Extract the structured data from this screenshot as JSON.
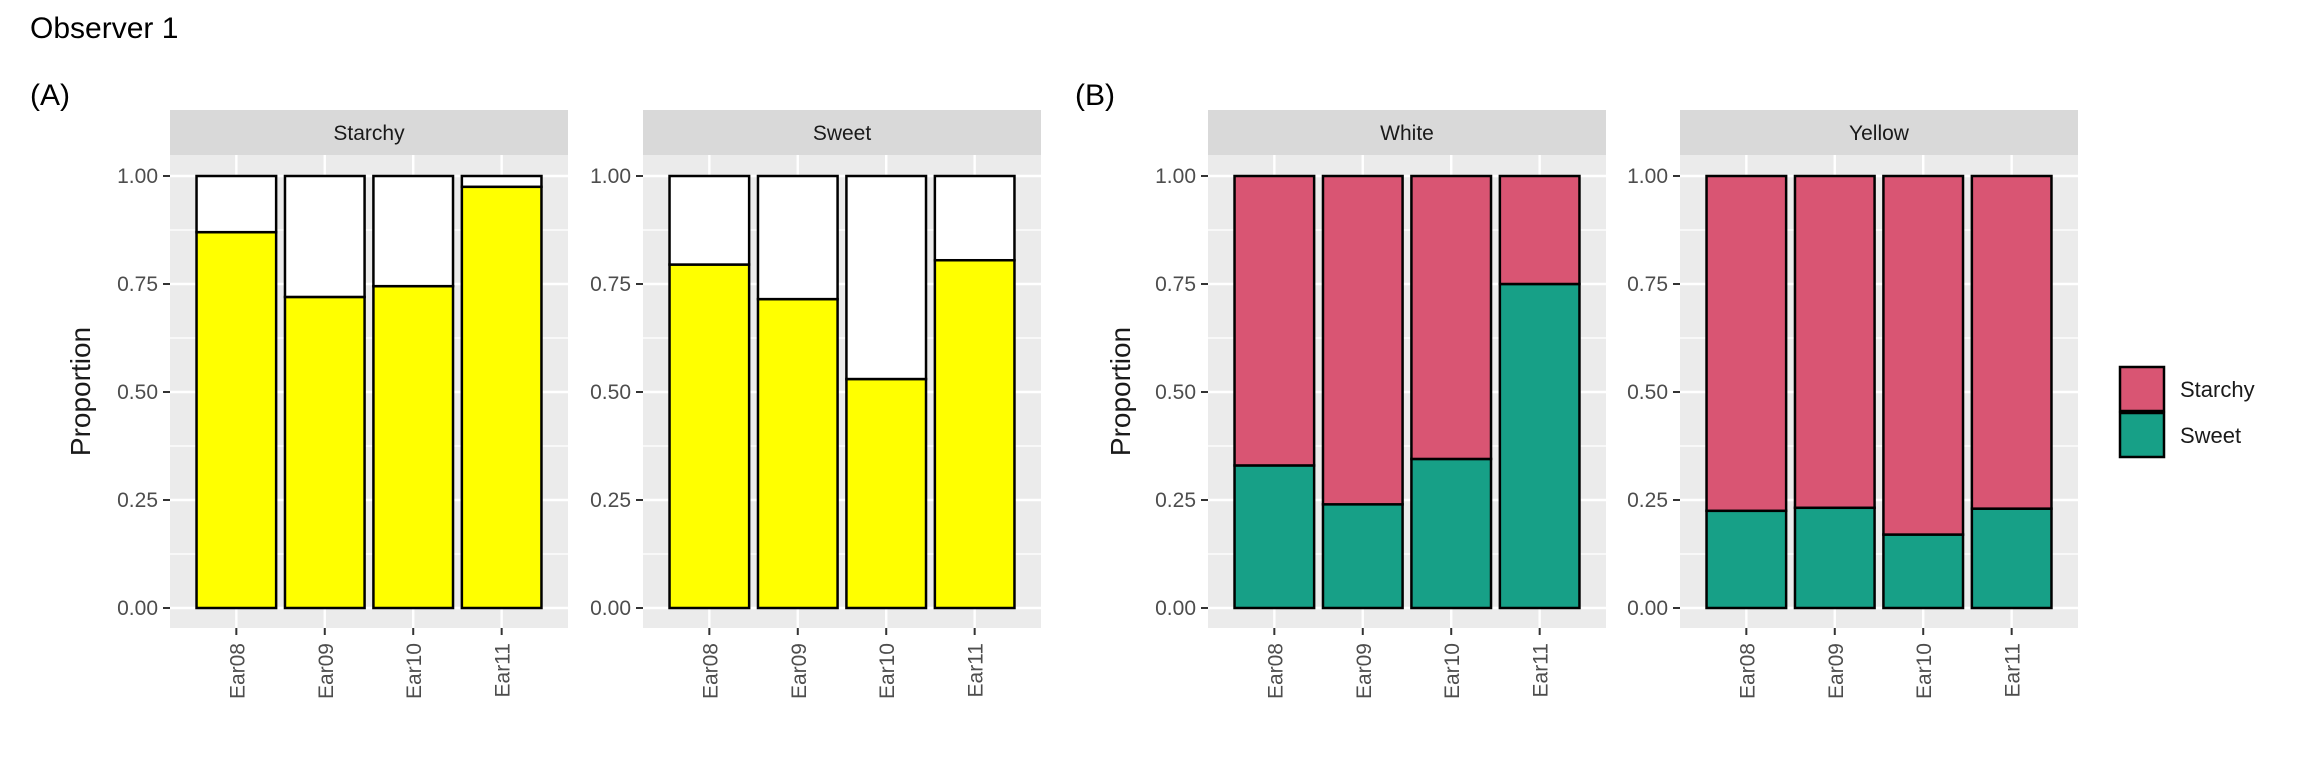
{
  "page": {
    "title": "Observer 1",
    "panel_a_label": "(A)",
    "panel_b_label": "(B)"
  },
  "colors": {
    "panel_bg": "#ebebeb",
    "strip_bg": "#d9d9d9",
    "grid": "#ffffff",
    "yellow_fill": "#ffff00",
    "empty_fill": "#ffffff",
    "starchy": "#d95573",
    "sweet": "#17a087",
    "bar_stroke": "#000000",
    "text": "#1a1a1a",
    "tick_text": "#4d4d4d"
  },
  "legend": {
    "items": [
      {
        "label": "Starchy",
        "color": "#d95573"
      },
      {
        "label": "Sweet",
        "color": "#17a087"
      }
    ]
  },
  "chart_data": [
    {
      "id": "A",
      "type": "bar",
      "stacked": true,
      "ylabel": "Proportion",
      "xlabel": "",
      "ylim": [
        0,
        1
      ],
      "yticks": [
        "0.00",
        "0.25",
        "0.50",
        "0.75",
        "1.00"
      ],
      "grid": true,
      "facets": [
        {
          "strip": "Starchy",
          "categories": [
            "Ear08",
            "Ear09",
            "Ear10",
            "Ear11"
          ],
          "series": [
            {
              "fill": "#ffff00",
              "values": [
                0.87,
                0.72,
                0.745,
                0.975
              ]
            },
            {
              "fill": "#ffffff",
              "values": [
                0.13,
                0.28,
                0.255,
                0.025
              ]
            }
          ]
        },
        {
          "strip": "Sweet",
          "categories": [
            "Ear08",
            "Ear09",
            "Ear10",
            "Ear11"
          ],
          "series": [
            {
              "fill": "#ffff00",
              "values": [
                0.795,
                0.715,
                0.53,
                0.805
              ]
            },
            {
              "fill": "#ffffff",
              "values": [
                0.205,
                0.285,
                0.47,
                0.195
              ]
            }
          ]
        }
      ]
    },
    {
      "id": "B",
      "type": "bar",
      "stacked": true,
      "ylabel": "Proportion",
      "xlabel": "",
      "ylim": [
        0,
        1
      ],
      "yticks": [
        "0.00",
        "0.25",
        "0.50",
        "0.75",
        "1.00"
      ],
      "grid": true,
      "legend_position": "right",
      "facets": [
        {
          "strip": "White",
          "categories": [
            "Ear08",
            "Ear09",
            "Ear10",
            "Ear11"
          ],
          "series": [
            {
              "name": "Sweet",
              "fill": "#17a087",
              "values": [
                0.33,
                0.24,
                0.345,
                0.75
              ]
            },
            {
              "name": "Starchy",
              "fill": "#d95573",
              "values": [
                0.67,
                0.76,
                0.655,
                0.25
              ]
            }
          ]
        },
        {
          "strip": "Yellow",
          "categories": [
            "Ear08",
            "Ear09",
            "Ear10",
            "Ear11"
          ],
          "series": [
            {
              "name": "Sweet",
              "fill": "#17a087",
              "values": [
                0.225,
                0.232,
                0.17,
                0.23
              ]
            },
            {
              "name": "Starchy",
              "fill": "#d95573",
              "values": [
                0.775,
                0.768,
                0.83,
                0.77
              ]
            }
          ]
        }
      ]
    }
  ]
}
